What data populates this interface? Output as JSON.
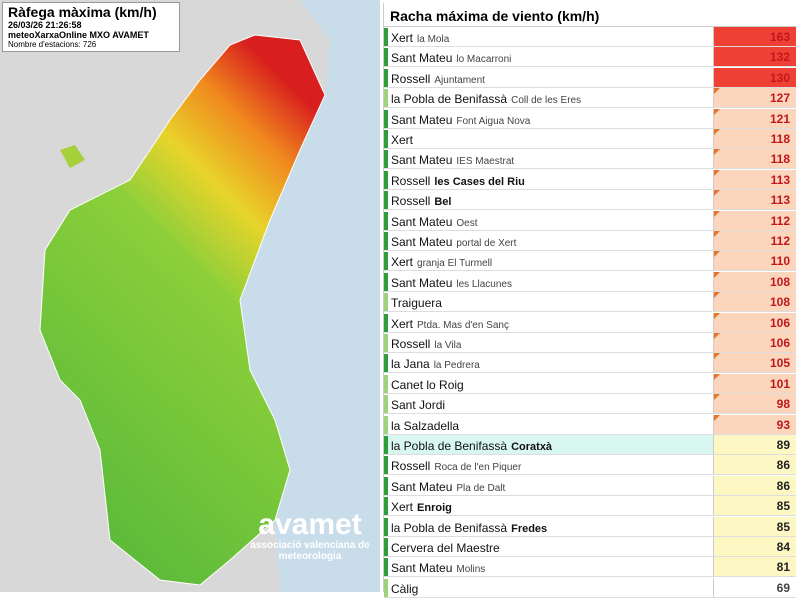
{
  "map_panel": {
    "title": "Ràfega màxima (km/h)",
    "timestamp": "26/03/26 21:26:58",
    "source": "meteoXarxaOnline MXO AVAMET",
    "stations": "Nombre d'estacions: 726",
    "logo": "avamet",
    "logo_subtitle": "associació valenciana de meteorologia"
  },
  "table": {
    "title": "Racha máxima de viento (km/h)",
    "rows": [
      {
        "town": "Xert",
        "station": "la Mola",
        "value": 163,
        "indicator": "#2e9e3a",
        "cell_color": "#ef4036"
      },
      {
        "town": "Sant Mateu",
        "station": "lo Macarroni",
        "value": 132,
        "indicator": "#2e9e3a",
        "cell_color": "#ef4036"
      },
      {
        "town": "Rossell",
        "station": "Ajuntament",
        "value": 130,
        "indicator": "#2e9e3a",
        "cell_color": "#ef4036"
      },
      {
        "town": "la Pobla de Benifassà",
        "station": "Coll de les Eres",
        "value": 127,
        "indicator": "#9fd27f",
        "cell_color": "#fcd5bd"
      },
      {
        "town": "Sant Mateu",
        "station": "Font Aigua Nova",
        "value": 121,
        "indicator": "#2e9e3a",
        "cell_color": "#fcd5bd"
      },
      {
        "town": "Xert",
        "value": 118,
        "indicator": "#2e9e3a",
        "cell_color": "#fcd5bd"
      },
      {
        "town": "Sant Mateu",
        "station": "IES Maestrat",
        "value": 118,
        "indicator": "#2e9e3a",
        "cell_color": "#fcd5bd"
      },
      {
        "town": "Rossell",
        "station": "les Cases del Riu",
        "bold": true,
        "value": 113,
        "indicator": "#2e9e3a",
        "cell_color": "#fcd5bd"
      },
      {
        "town": "Rossell",
        "station": "Bel",
        "bold": true,
        "value": 113,
        "indicator": "#2e9e3a",
        "cell_color": "#fcd5bd"
      },
      {
        "town": "Sant Mateu",
        "station": "Oest",
        "value": 112,
        "indicator": "#2e9e3a",
        "cell_color": "#fcd5bd"
      },
      {
        "town": "Sant Mateu",
        "station": "portal de Xert",
        "value": 112,
        "indicator": "#2e9e3a",
        "cell_color": "#fcd5bd"
      },
      {
        "town": "Xert",
        "station": "granja El Turmell",
        "value": 110,
        "indicator": "#2e9e3a",
        "cell_color": "#fcd5bd"
      },
      {
        "town": "Sant Mateu",
        "station": "les Llacunes",
        "value": 108,
        "indicator": "#2e9e3a",
        "cell_color": "#fcd5bd"
      },
      {
        "town": "Traiguera",
        "value": 108,
        "indicator": "#9fd27f",
        "cell_color": "#fcd5bd"
      },
      {
        "town": "Xert",
        "station": "Ptda. Mas d'en Sanç",
        "value": 106,
        "indicator": "#2e9e3a",
        "cell_color": "#fcd5bd"
      },
      {
        "town": "Rossell",
        "station": "la Vila",
        "value": 106,
        "indicator": "#9fd27f",
        "cell_color": "#fcd5bd"
      },
      {
        "town": "la Jana",
        "station": "la Pedrera",
        "value": 105,
        "indicator": "#2e9e3a",
        "cell_color": "#fcd5bd"
      },
      {
        "town": "Canet lo Roig",
        "value": 101,
        "indicator": "#9fd27f",
        "cell_color": "#fcd5bd"
      },
      {
        "town": "Sant Jordi",
        "value": 98,
        "indicator": "#9fd27f",
        "cell_color": "#fcd5bd"
      },
      {
        "town": "la Salzadella",
        "value": 93,
        "indicator": "#9fd27f",
        "cell_color": "#fcd5bd"
      },
      {
        "town": "la Pobla de Benifassà",
        "station": "Coratxà",
        "bold": true,
        "value": 89,
        "indicator": "#2e9e3a",
        "cell_color": "#fdf7c3",
        "highlight": "#d9f7f1"
      },
      {
        "town": "Rossell",
        "station": "Roca de l'en Piquer",
        "value": 86,
        "indicator": "#2e9e3a",
        "cell_color": "#fdf7c3"
      },
      {
        "town": "Sant Mateu",
        "station": "Pla de Dalt",
        "value": 86,
        "indicator": "#2e9e3a",
        "cell_color": "#fdf7c3"
      },
      {
        "town": "Xert",
        "station": "Enroig",
        "bold": true,
        "value": 85,
        "indicator": "#2e9e3a",
        "cell_color": "#fdf7c3"
      },
      {
        "town": "la Pobla de Benifassà",
        "station": "Fredes",
        "bold": true,
        "value": 85,
        "indicator": "#2e9e3a",
        "cell_color": "#fdf7c3"
      },
      {
        "town": "Cervera del Maestre",
        "value": 84,
        "indicator": "#2e9e3a",
        "cell_color": "#fdf7c3"
      },
      {
        "town": "Sant Mateu",
        "station": "Molins",
        "value": 81,
        "indicator": "#2e9e3a",
        "cell_color": "#fdf7c3"
      },
      {
        "town": "Càlig",
        "value": 69,
        "indicator": "#9fd27f",
        "cell_color": "#ffffff"
      }
    ]
  }
}
